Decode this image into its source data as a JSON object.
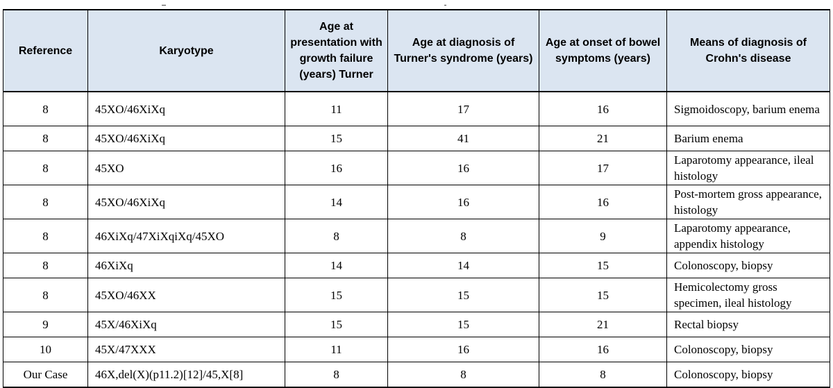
{
  "table": {
    "headers": [
      "Reference",
      "Karyotype",
      "Age at presentation with growth failure (years) Turner",
      "Age at diagnosis of Turner's syndrome (years)",
      "Age at onset of bowel symptoms (years)",
      "Means of diagnosis of Crohn's disease"
    ],
    "rows": [
      {
        "reference": "8",
        "karyotype": "45XO/46XiXq",
        "age_presentation": "11",
        "age_diagnosis_turner": "17",
        "age_onset_bowel": "16",
        "means_diagnosis": "Sigmoidoscopy, barium enema"
      },
      {
        "reference": "8",
        "karyotype": "45XO/46XiXq",
        "age_presentation": "15",
        "age_diagnosis_turner": "41",
        "age_onset_bowel": "21",
        "means_diagnosis": "Barium enema"
      },
      {
        "reference": "8",
        "karyotype": "45XO",
        "age_presentation": "16",
        "age_diagnosis_turner": "16",
        "age_onset_bowel": "17",
        "means_diagnosis": "Laparotomy appearance, ileal histology"
      },
      {
        "reference": "8",
        "karyotype": "45XO/46XiXq",
        "age_presentation": "14",
        "age_diagnosis_turner": "16",
        "age_onset_bowel": "16",
        "means_diagnosis": "Post-mortem gross appearance, histology"
      },
      {
        "reference": "8",
        "karyotype": "46XiXq/47XiXqiXq/45XO",
        "age_presentation": "8",
        "age_diagnosis_turner": "8",
        "age_onset_bowel": "9",
        "means_diagnosis": "Laparotomy appearance, appendix histology"
      },
      {
        "reference": "8",
        "karyotype": "46XiXq",
        "age_presentation": "14",
        "age_diagnosis_turner": "14",
        "age_onset_bowel": "15",
        "means_diagnosis": "Colonoscopy, biopsy"
      },
      {
        "reference": "8",
        "karyotype": "45XO/46XX",
        "age_presentation": "15",
        "age_diagnosis_turner": "15",
        "age_onset_bowel": "15",
        "means_diagnosis": "Hemicolectomy gross specimen, ileal histology"
      },
      {
        "reference": "9",
        "karyotype": "45X/46XiXq",
        "age_presentation": "15",
        "age_diagnosis_turner": "15",
        "age_onset_bowel": "21",
        "means_diagnosis": "Rectal biopsy"
      },
      {
        "reference": "10",
        "karyotype": "45X/47XXX",
        "age_presentation": "11",
        "age_diagnosis_turner": "16",
        "age_onset_bowel": "16",
        "means_diagnosis": "Colonoscopy, biopsy"
      },
      {
        "reference": "Our Case",
        "karyotype": "46X,del(X)(p11.2)[12]/45,X[8]",
        "age_presentation": "8",
        "age_diagnosis_turner": "8",
        "age_onset_bowel": "8",
        "means_diagnosis": "Colonoscopy, biopsy"
      }
    ]
  },
  "colors": {
    "header_background": "#dbe5f1",
    "border": "#000000",
    "text": "#000000"
  }
}
